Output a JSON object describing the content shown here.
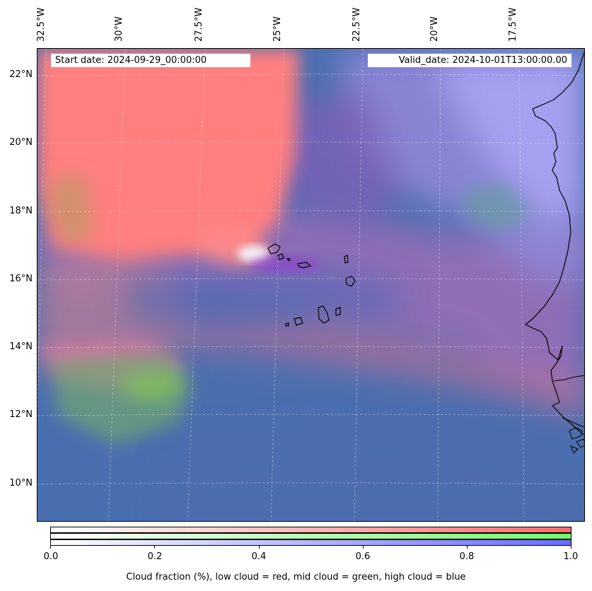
{
  "map": {
    "start_label": "Start date: 2024-09-29_00:00:00",
    "valid_label": "Valid_date: 2024-10-01T13:00:00.00",
    "lon_ticks": [
      "32.5°W",
      "30°W",
      "27.5°W",
      "25°W",
      "22.5°W",
      "20°W",
      "17.5°W"
    ],
    "lat_ticks": [
      "22°N",
      "20°N",
      "18°N",
      "16°N",
      "14°N",
      "12°N",
      "10°N"
    ],
    "gridlines": true,
    "channels": {
      "low_cloud": "#ff7f7f",
      "mid_cloud": "#7fff7f",
      "high_cloud": "#7f7fff"
    },
    "ocean_base": "#4a6fb0"
  },
  "colorbar": {
    "ticks": [
      "0.0",
      "0.2",
      "0.4",
      "0.6",
      "0.8",
      "1.0"
    ],
    "label": "Cloud fraction (%), low cloud = red, mid cloud = green, high cloud = blue"
  }
}
